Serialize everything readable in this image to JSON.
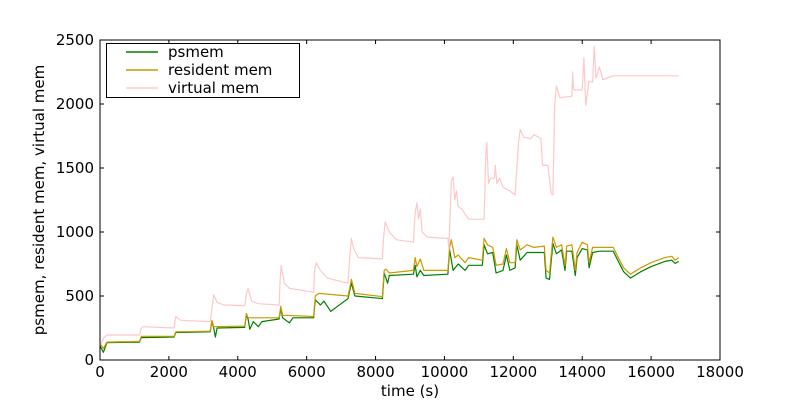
{
  "chart_data": {
    "type": "line",
    "title": "",
    "xlabel": "time (s)",
    "ylabel": "psmem, resident mem, virtual mem",
    "xlim": [
      0,
      18000
    ],
    "ylim": [
      0,
      2500
    ],
    "xticks": [
      0,
      2000,
      4000,
      6000,
      8000,
      10000,
      12000,
      14000,
      16000,
      18000
    ],
    "yticks": [
      0,
      500,
      1000,
      1500,
      2000,
      2500
    ],
    "grid": false,
    "legend_placement": "top-left",
    "series": [
      {
        "name": "psmem",
        "color": "#008000",
        "points": [
          [
            0,
            110
          ],
          [
            100,
            60
          ],
          [
            200,
            135
          ],
          [
            1150,
            140
          ],
          [
            1200,
            175
          ],
          [
            2150,
            180
          ],
          [
            2200,
            215
          ],
          [
            3200,
            220
          ],
          [
            3250,
            300
          ],
          [
            3300,
            250
          ],
          [
            3350,
            180
          ],
          [
            3400,
            250
          ],
          [
            4200,
            255
          ],
          [
            4250,
            350
          ],
          [
            4300,
            320
          ],
          [
            4350,
            240
          ],
          [
            4450,
            300
          ],
          [
            4600,
            260
          ],
          [
            4700,
            300
          ],
          [
            5200,
            320
          ],
          [
            5250,
            400
          ],
          [
            5300,
            330
          ],
          [
            5500,
            290
          ],
          [
            5600,
            330
          ],
          [
            6200,
            330
          ],
          [
            6250,
            470
          ],
          [
            6400,
            430
          ],
          [
            6500,
            460
          ],
          [
            6700,
            380
          ],
          [
            6900,
            420
          ],
          [
            7200,
            480
          ],
          [
            7300,
            600
          ],
          [
            7400,
            500
          ],
          [
            8200,
            480
          ],
          [
            8250,
            680
          ],
          [
            8350,
            600
          ],
          [
            8400,
            660
          ],
          [
            9100,
            670
          ],
          [
            9150,
            740
          ],
          [
            9200,
            650
          ],
          [
            9300,
            700
          ],
          [
            9400,
            660
          ],
          [
            10100,
            670
          ],
          [
            10150,
            860
          ],
          [
            10250,
            700
          ],
          [
            10400,
            750
          ],
          [
            10600,
            700
          ],
          [
            10700,
            740
          ],
          [
            11100,
            740
          ],
          [
            11150,
            900
          ],
          [
            11250,
            830
          ],
          [
            11400,
            840
          ],
          [
            11500,
            680
          ],
          [
            11700,
            700
          ],
          [
            11800,
            820
          ],
          [
            11900,
            700
          ],
          [
            12050,
            720
          ],
          [
            12100,
            900
          ],
          [
            12200,
            780
          ],
          [
            12400,
            840
          ],
          [
            12600,
            840
          ],
          [
            12900,
            840
          ],
          [
            12950,
            640
          ],
          [
            13050,
            630
          ],
          [
            13150,
            910
          ],
          [
            13250,
            830
          ],
          [
            13400,
            860
          ],
          [
            13500,
            700
          ],
          [
            13550,
            850
          ],
          [
            13700,
            850
          ],
          [
            13800,
            660
          ],
          [
            13850,
            800
          ],
          [
            14000,
            870
          ],
          [
            14150,
            860
          ],
          [
            14200,
            720
          ],
          [
            14300,
            840
          ],
          [
            14500,
            850
          ],
          [
            14900,
            850
          ],
          [
            15200,
            690
          ],
          [
            15400,
            640
          ],
          [
            15700,
            690
          ],
          [
            16000,
            730
          ],
          [
            16400,
            770
          ],
          [
            16600,
            780
          ],
          [
            16700,
            755
          ],
          [
            16800,
            770
          ]
        ]
      },
      {
        "name": "resident mem",
        "color": "#cc9900",
        "points": [
          [
            0,
            130
          ],
          [
            100,
            90
          ],
          [
            200,
            140
          ],
          [
            1150,
            145
          ],
          [
            1200,
            185
          ],
          [
            2150,
            185
          ],
          [
            2200,
            220
          ],
          [
            3200,
            225
          ],
          [
            3250,
            310
          ],
          [
            3300,
            260
          ],
          [
            4200,
            265
          ],
          [
            4250,
            365
          ],
          [
            4300,
            330
          ],
          [
            5200,
            330
          ],
          [
            5250,
            420
          ],
          [
            5300,
            350
          ],
          [
            6200,
            340
          ],
          [
            6250,
            500
          ],
          [
            6350,
            520
          ],
          [
            7200,
            500
          ],
          [
            7250,
            560
          ],
          [
            7300,
            630
          ],
          [
            7400,
            520
          ],
          [
            8200,
            495
          ],
          [
            8250,
            700
          ],
          [
            8300,
            710
          ],
          [
            8400,
            680
          ],
          [
            9100,
            700
          ],
          [
            9150,
            800
          ],
          [
            9200,
            730
          ],
          [
            9300,
            790
          ],
          [
            9400,
            700
          ],
          [
            10100,
            700
          ],
          [
            10150,
            880
          ],
          [
            10200,
            940
          ],
          [
            10300,
            800
          ],
          [
            10400,
            820
          ],
          [
            10600,
            760
          ],
          [
            10700,
            800
          ],
          [
            11100,
            780
          ],
          [
            11150,
            950
          ],
          [
            11250,
            900
          ],
          [
            11400,
            880
          ],
          [
            11500,
            740
          ],
          [
            11700,
            750
          ],
          [
            11800,
            870
          ],
          [
            11900,
            760
          ],
          [
            12050,
            760
          ],
          [
            12100,
            940
          ],
          [
            12200,
            860
          ],
          [
            12400,
            900
          ],
          [
            12600,
            880
          ],
          [
            12900,
            890
          ],
          [
            12950,
            700
          ],
          [
            13050,
            680
          ],
          [
            13150,
            960
          ],
          [
            13250,
            880
          ],
          [
            13400,
            900
          ],
          [
            13500,
            740
          ],
          [
            13550,
            890
          ],
          [
            13700,
            900
          ],
          [
            13800,
            700
          ],
          [
            13850,
            840
          ],
          [
            14000,
            920
          ],
          [
            14150,
            900
          ],
          [
            14200,
            760
          ],
          [
            14300,
            880
          ],
          [
            14500,
            880
          ],
          [
            14900,
            880
          ],
          [
            15200,
            720
          ],
          [
            15400,
            670
          ],
          [
            15700,
            720
          ],
          [
            16000,
            760
          ],
          [
            16400,
            800
          ],
          [
            16600,
            810
          ],
          [
            16700,
            780
          ],
          [
            16800,
            800
          ]
        ]
      },
      {
        "name": "virtual mem",
        "color": "#ffc8c8",
        "points": [
          [
            0,
            110
          ],
          [
            100,
            170
          ],
          [
            200,
            195
          ],
          [
            1150,
            195
          ],
          [
            1200,
            250
          ],
          [
            1250,
            260
          ],
          [
            2150,
            250
          ],
          [
            2200,
            340
          ],
          [
            2350,
            310
          ],
          [
            3200,
            300
          ],
          [
            3260,
            420
          ],
          [
            3300,
            510
          ],
          [
            3400,
            450
          ],
          [
            3600,
            430
          ],
          [
            4200,
            425
          ],
          [
            4250,
            520
          ],
          [
            4300,
            560
          ],
          [
            4400,
            460
          ],
          [
            4600,
            440
          ],
          [
            5200,
            430
          ],
          [
            5230,
            620
          ],
          [
            5260,
            740
          ],
          [
            5350,
            600
          ],
          [
            5500,
            560
          ],
          [
            6200,
            530
          ],
          [
            6230,
            700
          ],
          [
            6280,
            760
          ],
          [
            6400,
            700
          ],
          [
            6600,
            640
          ],
          [
            7200,
            600
          ],
          [
            7250,
            800
          ],
          [
            7300,
            950
          ],
          [
            7350,
            880
          ],
          [
            7500,
            800
          ],
          [
            8200,
            790
          ],
          [
            8230,
            950
          ],
          [
            8280,
            1080
          ],
          [
            8400,
            1000
          ],
          [
            8600,
            940
          ],
          [
            9100,
            920
          ],
          [
            9150,
            1150
          ],
          [
            9200,
            1230
          ],
          [
            9250,
            1100
          ],
          [
            9300,
            1180
          ],
          [
            9350,
            1000
          ],
          [
            9500,
            960
          ],
          [
            10100,
            950
          ],
          [
            10130,
            870
          ],
          [
            10200,
            1400
          ],
          [
            10250,
            1430
          ],
          [
            10300,
            1250
          ],
          [
            10350,
            1320
          ],
          [
            10400,
            1200
          ],
          [
            10500,
            1180
          ],
          [
            10700,
            1100
          ],
          [
            11150,
            1100
          ],
          [
            11200,
            1600
          ],
          [
            11230,
            1700
          ],
          [
            11280,
            1380
          ],
          [
            11350,
            1420
          ],
          [
            11450,
            1420
          ],
          [
            11480,
            1520
          ],
          [
            11520,
            1380
          ],
          [
            11600,
            1420
          ],
          [
            11700,
            1350
          ],
          [
            11900,
            1320
          ],
          [
            12050,
            1290
          ],
          [
            12150,
            1700
          ],
          [
            12200,
            1800
          ],
          [
            12300,
            1740
          ],
          [
            12500,
            1730
          ],
          [
            12600,
            1760
          ],
          [
            12800,
            1730
          ],
          [
            12850,
            1520
          ],
          [
            13000,
            1520
          ],
          [
            13100,
            1300
          ],
          [
            13150,
            1290
          ],
          [
            13200,
            2000
          ],
          [
            13250,
            2140
          ],
          [
            13350,
            2050
          ],
          [
            13700,
            2060
          ],
          [
            13720,
            2250
          ],
          [
            13750,
            2110
          ],
          [
            14000,
            2110
          ],
          [
            14050,
            2360
          ],
          [
            14100,
            1990
          ],
          [
            14200,
            2180
          ],
          [
            14300,
            2170
          ],
          [
            14350,
            2450
          ],
          [
            14400,
            2200
          ],
          [
            14500,
            2290
          ],
          [
            14600,
            2190
          ],
          [
            14900,
            2220
          ],
          [
            16800,
            2220
          ]
        ]
      }
    ]
  }
}
